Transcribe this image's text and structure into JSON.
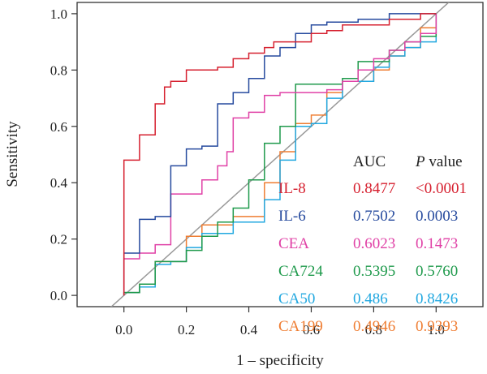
{
  "chart_data": {
    "type": "line",
    "title": "",
    "xlabel": "1 – specificity",
    "ylabel": "Sensitivity",
    "xlim": [
      -0.15,
      1.15
    ],
    "ylim": [
      -0.04,
      1.04
    ],
    "x_ticks": [
      "0.0",
      "0.2",
      "0.4",
      "0.6",
      "0.8",
      "1.0"
    ],
    "y_ticks": [
      "0.0",
      "0.2",
      "0.4",
      "0.6",
      "0.8",
      "1.0"
    ],
    "reference_line": {
      "from": [
        -0.05,
        -0.05
      ],
      "to": [
        1.05,
        1.05
      ],
      "color": "#999999"
    },
    "legend": {
      "placement": "bottom-right",
      "header_auc": "AUC",
      "header_p_italic": "P",
      "header_p_rest": " value"
    },
    "series": [
      {
        "name": "IL-8",
        "auc": "0.8477",
        "p": "<0.0001",
        "color": "#d6202f",
        "points": [
          [
            0,
            0
          ],
          [
            0,
            0.48
          ],
          [
            0.05,
            0.48
          ],
          [
            0.05,
            0.57
          ],
          [
            0.1,
            0.57
          ],
          [
            0.1,
            0.68
          ],
          [
            0.13,
            0.68
          ],
          [
            0.13,
            0.74
          ],
          [
            0.15,
            0.74
          ],
          [
            0.15,
            0.76
          ],
          [
            0.2,
            0.76
          ],
          [
            0.2,
            0.8
          ],
          [
            0.3,
            0.8
          ],
          [
            0.3,
            0.81
          ],
          [
            0.35,
            0.81
          ],
          [
            0.35,
            0.84
          ],
          [
            0.4,
            0.84
          ],
          [
            0.4,
            0.86
          ],
          [
            0.45,
            0.86
          ],
          [
            0.45,
            0.88
          ],
          [
            0.48,
            0.88
          ],
          [
            0.48,
            0.9
          ],
          [
            0.6,
            0.9
          ],
          [
            0.6,
            0.93
          ],
          [
            0.65,
            0.93
          ],
          [
            0.65,
            0.94
          ],
          [
            0.7,
            0.94
          ],
          [
            0.7,
            0.96
          ],
          [
            0.85,
            0.96
          ],
          [
            0.85,
            0.98
          ],
          [
            0.95,
            0.98
          ],
          [
            0.95,
            1
          ],
          [
            1,
            1
          ]
        ]
      },
      {
        "name": "IL-6",
        "auc": "0.7502",
        "p": "0.0003",
        "color": "#264a9e",
        "points": [
          [
            0,
            0
          ],
          [
            0,
            0.15
          ],
          [
            0.05,
            0.15
          ],
          [
            0.05,
            0.27
          ],
          [
            0.1,
            0.27
          ],
          [
            0.1,
            0.28
          ],
          [
            0.15,
            0.28
          ],
          [
            0.15,
            0.46
          ],
          [
            0.2,
            0.46
          ],
          [
            0.2,
            0.52
          ],
          [
            0.25,
            0.52
          ],
          [
            0.25,
            0.53
          ],
          [
            0.3,
            0.53
          ],
          [
            0.3,
            0.68
          ],
          [
            0.35,
            0.68
          ],
          [
            0.35,
            0.72
          ],
          [
            0.4,
            0.72
          ],
          [
            0.4,
            0.77
          ],
          [
            0.45,
            0.77
          ],
          [
            0.45,
            0.85
          ],
          [
            0.5,
            0.85
          ],
          [
            0.5,
            0.88
          ],
          [
            0.55,
            0.88
          ],
          [
            0.55,
            0.93
          ],
          [
            0.6,
            0.93
          ],
          [
            0.6,
            0.96
          ],
          [
            0.65,
            0.96
          ],
          [
            0.65,
            0.97
          ],
          [
            0.75,
            0.97
          ],
          [
            0.75,
            0.98
          ],
          [
            0.85,
            0.98
          ],
          [
            0.85,
            1
          ],
          [
            1,
            1
          ]
        ]
      },
      {
        "name": "CEA",
        "auc": "0.6023",
        "p": "0.1473",
        "color": "#e041a6",
        "points": [
          [
            0,
            0
          ],
          [
            0,
            0.13
          ],
          [
            0.05,
            0.13
          ],
          [
            0.05,
            0.15
          ],
          [
            0.1,
            0.15
          ],
          [
            0.1,
            0.18
          ],
          [
            0.15,
            0.18
          ],
          [
            0.15,
            0.36
          ],
          [
            0.25,
            0.36
          ],
          [
            0.25,
            0.41
          ],
          [
            0.3,
            0.41
          ],
          [
            0.3,
            0.46
          ],
          [
            0.33,
            0.46
          ],
          [
            0.33,
            0.51
          ],
          [
            0.35,
            0.51
          ],
          [
            0.35,
            0.63
          ],
          [
            0.4,
            0.63
          ],
          [
            0.4,
            0.65
          ],
          [
            0.45,
            0.65
          ],
          [
            0.45,
            0.71
          ],
          [
            0.5,
            0.71
          ],
          [
            0.5,
            0.72
          ],
          [
            0.65,
            0.72
          ],
          [
            0.65,
            0.73
          ],
          [
            0.7,
            0.73
          ],
          [
            0.7,
            0.76
          ],
          [
            0.75,
            0.76
          ],
          [
            0.75,
            0.8
          ],
          [
            0.8,
            0.8
          ],
          [
            0.8,
            0.84
          ],
          [
            0.85,
            0.84
          ],
          [
            0.85,
            0.87
          ],
          [
            0.9,
            0.87
          ],
          [
            0.9,
            0.9
          ],
          [
            0.95,
            0.9
          ],
          [
            0.95,
            0.93
          ],
          [
            1,
            0.93
          ],
          [
            1,
            1
          ]
        ]
      },
      {
        "name": "CA724",
        "auc": "0.5395",
        "p": "0.5760",
        "color": "#1f9a4c",
        "points": [
          [
            0,
            0
          ],
          [
            0,
            0.01
          ],
          [
            0.05,
            0.01
          ],
          [
            0.05,
            0.04
          ],
          [
            0.1,
            0.04
          ],
          [
            0.1,
            0.12
          ],
          [
            0.2,
            0.12
          ],
          [
            0.2,
            0.16
          ],
          [
            0.25,
            0.16
          ],
          [
            0.25,
            0.21
          ],
          [
            0.3,
            0.21
          ],
          [
            0.3,
            0.26
          ],
          [
            0.35,
            0.26
          ],
          [
            0.35,
            0.31
          ],
          [
            0.4,
            0.31
          ],
          [
            0.4,
            0.41
          ],
          [
            0.45,
            0.41
          ],
          [
            0.45,
            0.54
          ],
          [
            0.5,
            0.54
          ],
          [
            0.5,
            0.6
          ],
          [
            0.55,
            0.6
          ],
          [
            0.55,
            0.75
          ],
          [
            0.7,
            0.75
          ],
          [
            0.7,
            0.77
          ],
          [
            0.75,
            0.77
          ],
          [
            0.75,
            0.83
          ],
          [
            0.85,
            0.83
          ],
          [
            0.85,
            0.87
          ],
          [
            0.9,
            0.87
          ],
          [
            0.9,
            0.9
          ],
          [
            0.95,
            0.9
          ],
          [
            0.95,
            0.92
          ],
          [
            1,
            0.92
          ],
          [
            1,
            1
          ]
        ]
      },
      {
        "name": "CA50",
        "auc": "0.486",
        "p": "0.8426",
        "color": "#22a8e0",
        "points": [
          [
            0,
            0
          ],
          [
            0,
            0.01
          ],
          [
            0.05,
            0.01
          ],
          [
            0.05,
            0.03
          ],
          [
            0.1,
            0.03
          ],
          [
            0.1,
            0.11
          ],
          [
            0.15,
            0.11
          ],
          [
            0.15,
            0.12
          ],
          [
            0.2,
            0.12
          ],
          [
            0.2,
            0.17
          ],
          [
            0.25,
            0.17
          ],
          [
            0.25,
            0.22
          ],
          [
            0.35,
            0.22
          ],
          [
            0.35,
            0.26
          ],
          [
            0.45,
            0.26
          ],
          [
            0.45,
            0.34
          ],
          [
            0.5,
            0.34
          ],
          [
            0.5,
            0.48
          ],
          [
            0.55,
            0.48
          ],
          [
            0.55,
            0.6
          ],
          [
            0.6,
            0.6
          ],
          [
            0.6,
            0.61
          ],
          [
            0.65,
            0.61
          ],
          [
            0.65,
            0.7
          ],
          [
            0.7,
            0.7
          ],
          [
            0.7,
            0.76
          ],
          [
            0.8,
            0.76
          ],
          [
            0.8,
            0.81
          ],
          [
            0.85,
            0.81
          ],
          [
            0.85,
            0.85
          ],
          [
            0.9,
            0.85
          ],
          [
            0.9,
            0.88
          ],
          [
            0.95,
            0.88
          ],
          [
            0.95,
            0.9
          ],
          [
            1,
            0.9
          ],
          [
            1,
            1
          ]
        ]
      },
      {
        "name": "CA199",
        "auc": "0.4946",
        "p": "0.9393",
        "color": "#ef7d32",
        "points": [
          [
            0,
            0
          ],
          [
            0,
            0.01
          ],
          [
            0.05,
            0.01
          ],
          [
            0.05,
            0.04
          ],
          [
            0.1,
            0.04
          ],
          [
            0.1,
            0.12
          ],
          [
            0.2,
            0.12
          ],
          [
            0.2,
            0.21
          ],
          [
            0.25,
            0.21
          ],
          [
            0.25,
            0.25
          ],
          [
            0.35,
            0.25
          ],
          [
            0.35,
            0.28
          ],
          [
            0.45,
            0.28
          ],
          [
            0.45,
            0.4
          ],
          [
            0.5,
            0.4
          ],
          [
            0.5,
            0.51
          ],
          [
            0.55,
            0.51
          ],
          [
            0.55,
            0.61
          ],
          [
            0.6,
            0.61
          ],
          [
            0.6,
            0.64
          ],
          [
            0.65,
            0.64
          ],
          [
            0.65,
            0.72
          ],
          [
            0.7,
            0.72
          ],
          [
            0.7,
            0.76
          ],
          [
            0.8,
            0.76
          ],
          [
            0.8,
            0.8
          ],
          [
            0.85,
            0.8
          ],
          [
            0.85,
            0.85
          ],
          [
            0.9,
            0.85
          ],
          [
            0.9,
            0.88
          ],
          [
            0.95,
            0.88
          ],
          [
            0.95,
            0.95
          ],
          [
            1,
            0.95
          ],
          [
            1,
            1
          ]
        ]
      }
    ]
  }
}
